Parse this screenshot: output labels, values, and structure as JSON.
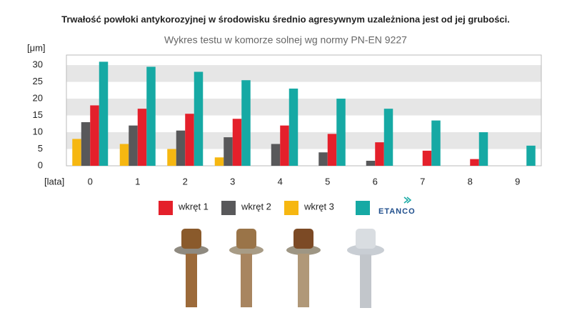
{
  "chart_data": {
    "type": "bar",
    "title": "Trwałość powłoki antykorozyjnej w środowisku średnio agresywnym uzależniona jest od jej grubości.",
    "subtitle": "Wykres testu w komorze solnej wg normy PN-EN 9227",
    "y_label": "[μm]",
    "x_label": "[lata]",
    "categories": [
      "0",
      "1",
      "2",
      "3",
      "4",
      "5",
      "6",
      "7",
      "8",
      "9"
    ],
    "series": [
      {
        "name": "wkręt 1",
        "color": "#e4202b",
        "values": [
          18,
          17,
          15.5,
          14,
          12,
          9.5,
          7,
          4.5,
          2,
          null
        ]
      },
      {
        "name": "wkręt 2",
        "color": "#58585a",
        "values": [
          13,
          12,
          10.5,
          8.5,
          6.5,
          4,
          1.5,
          null,
          null,
          null
        ]
      },
      {
        "name": "wkręt 3",
        "color": "#f6b711",
        "values": [
          8,
          6.5,
          5,
          2.5,
          null,
          null,
          null,
          null,
          null,
          null
        ]
      },
      {
        "name": "ETANCO",
        "color": "#16a9a4",
        "values": [
          31,
          29.5,
          28,
          25.5,
          23,
          20,
          17,
          13.5,
          10,
          6
        ]
      }
    ],
    "ylim": [
      0,
      33
    ],
    "yticks": [
      0,
      5,
      10,
      15,
      20,
      25,
      30
    ],
    "grid": true
  }
}
